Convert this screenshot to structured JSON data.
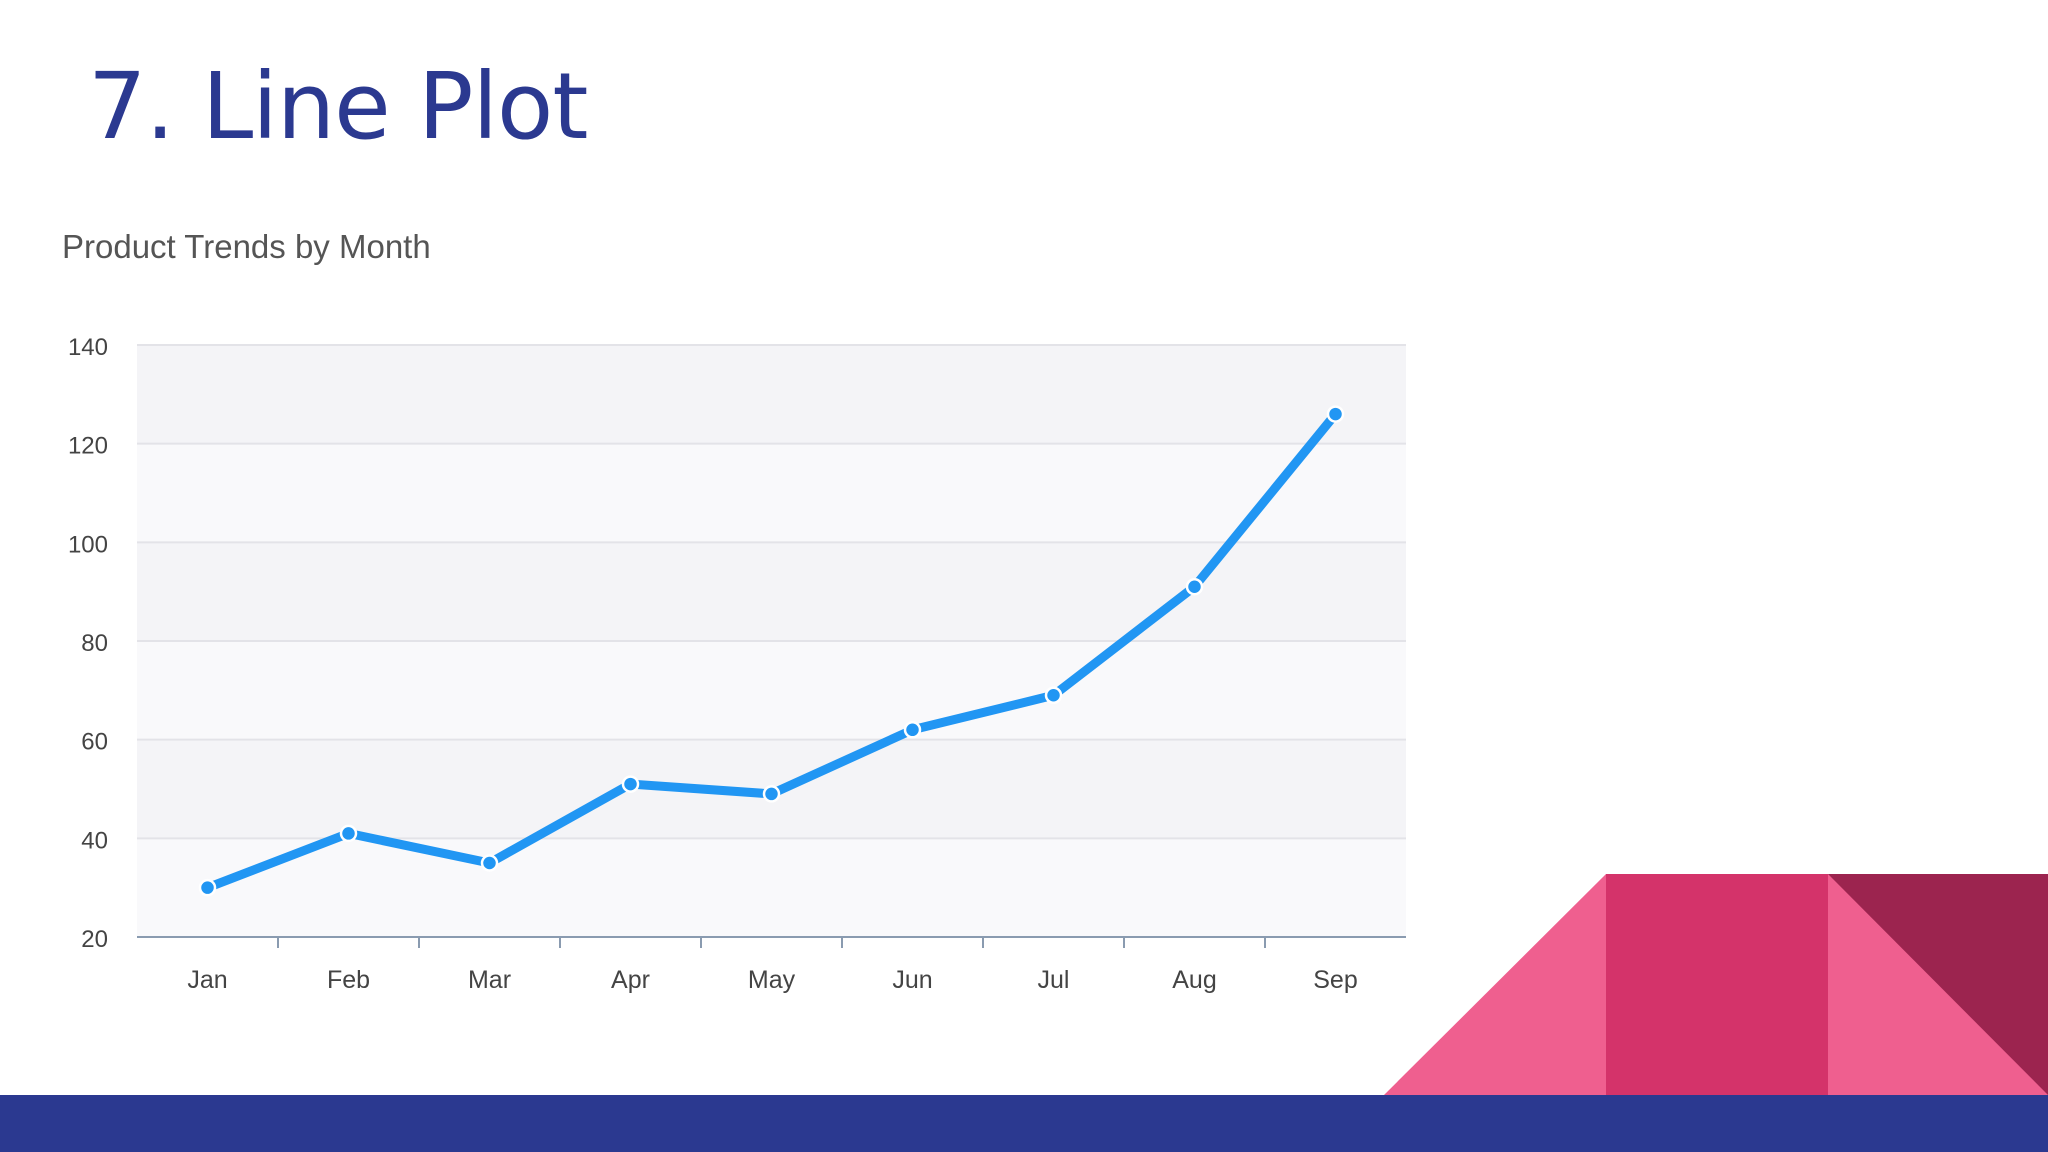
{
  "slide": {
    "title": "7. Line Plot"
  },
  "colors": {
    "title": "#2b3990",
    "line": "#2196f3",
    "footer": "#2b3990",
    "band_light": "#f9f9fb",
    "band_dark": "#f4f4f7",
    "corner_pink": "#ef5f8f",
    "corner_magenta": "#d4336a",
    "corner_maroon": "#9c244f"
  },
  "chart_data": {
    "type": "line",
    "title": "Product Trends by Month",
    "categories": [
      "Jan",
      "Feb",
      "Mar",
      "Apr",
      "May",
      "Jun",
      "Jul",
      "Aug",
      "Sep"
    ],
    "series": [
      {
        "values": [
          30,
          41,
          35,
          51,
          49,
          62,
          69,
          91,
          126
        ]
      }
    ],
    "ylim": [
      20,
      140
    ],
    "yticks": [
      20,
      40,
      60,
      80,
      100,
      120,
      140
    ],
    "grid": true,
    "legend": "none"
  }
}
